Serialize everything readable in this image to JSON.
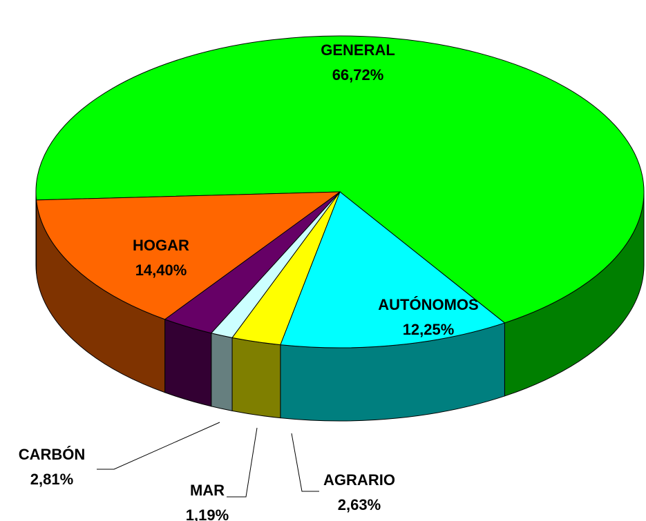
{
  "chart_data": {
    "type": "pie",
    "categories": [
      "GENERAL",
      "AUTÓNOMOS",
      "AGRARIO",
      "MAR",
      "CARBÓN",
      "HOGAR"
    ],
    "values": [
      66.72,
      12.25,
      2.63,
      1.19,
      2.81,
      14.4
    ],
    "value_labels": [
      "66,72%",
      "12,25%",
      "2,63%",
      "1,19%",
      "2,81%",
      "14,40%"
    ],
    "colors": [
      "#00ff00",
      "#00ffff",
      "#ffff00",
      "#ccffff",
      "#660066",
      "#ff6600"
    ]
  }
}
